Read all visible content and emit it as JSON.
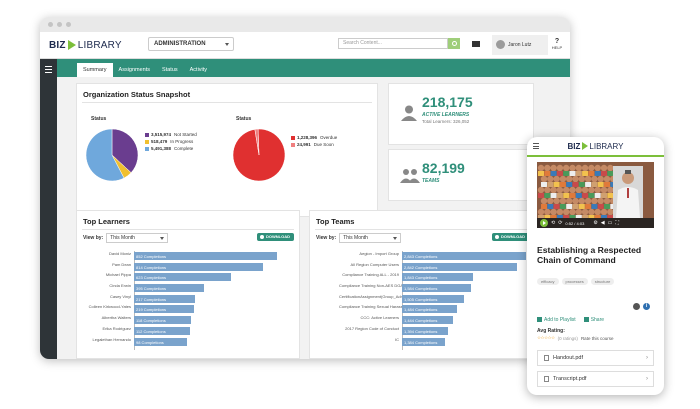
{
  "desktop": {
    "logo": {
      "biz": "BIZ",
      "library": "LIBRARY"
    },
    "admin_select": "ADMINISTRATION",
    "search_placeholder": "Search Content...",
    "user_name": "Jaron Lutz",
    "help_label": "HELP",
    "tabs": [
      "Summary",
      "Assignments",
      "Status",
      "Activity"
    ],
    "active_tab": "Summary",
    "org_status": {
      "title": "Organization Status Snapshot",
      "pie1": {
        "label": "Status",
        "items": [
          {
            "value": "3,515,974",
            "label": "Not Started",
            "color": "#6a3d8f"
          },
          {
            "value": "518,479",
            "label": "In Progress",
            "color": "#f0c030"
          },
          {
            "value": "5,491,388",
            "label": "Complete",
            "color": "#6fa8dc"
          }
        ]
      },
      "pie2": {
        "label": "Status",
        "items": [
          {
            "value": "1,228,396",
            "label": "Overdue",
            "color": "#e03030"
          },
          {
            "value": "24,991",
            "label": "Due Soon",
            "color": "#f08080"
          }
        ]
      }
    },
    "stats": {
      "learners_value": "218,175",
      "learners_label": "ACTIVE LEARNERS",
      "learners_sub": "Total Learners: 326,052",
      "teams_value": "82,199",
      "teams_label": "TEAMS"
    },
    "top_learners": {
      "title": "Top Learners",
      "view_by_label": "View by:",
      "view_by_value": "This Month",
      "download_label": "DOWNLOAD",
      "rows": [
        {
          "name": "David Moniz",
          "value": "852 Completions",
          "frac": 1.0
        },
        {
          "name": "Pam Dean",
          "value": "814 Completions",
          "frac": 0.9
        },
        {
          "name": "Michael Pippa",
          "value": "623 Completions",
          "frac": 0.68
        },
        {
          "name": "Cinda Erwin",
          "value": "395 Completions",
          "frac": 0.49
        },
        {
          "name": "Casey Vinyl",
          "value": "217 Completions",
          "frac": 0.43
        },
        {
          "name": "Colleen Kirkwood-Yates",
          "value": "219 Completions",
          "frac": 0.42
        },
        {
          "name": "Albertha Walters",
          "value": "118 Completions",
          "frac": 0.4
        },
        {
          "name": "Erika Rodriguez",
          "value": "112 Completions",
          "frac": 0.39
        },
        {
          "name": "Legalethan Hernando",
          "value": "98 Completions",
          "frac": 0.37
        }
      ]
    },
    "top_teams": {
      "title": "Top Teams",
      "view_by_label": "View by:",
      "view_by_value": "This Month",
      "download_label": "DOWNLOAD",
      "rows": [
        {
          "name": "Aegion - Import Group",
          "value": "2,843 Completions",
          "frac": 1.0
        },
        {
          "name": "All Region Computer Users",
          "value": "2,842 Completions",
          "frac": 0.93
        },
        {
          "name": "Compliance Training ALL - 2019",
          "value": "1,843 Completions",
          "frac": 0.57
        },
        {
          "name": "Compliance Training Non-AES DGA - 2019",
          "value": "1,584 Completions",
          "frac": 0.56
        },
        {
          "name": "CertificationAssignment(Group_AdminPro)",
          "value": "1,505 Completions",
          "frac": 0.5
        },
        {
          "name": "Compliance Training Sexual Harassment U.S. & Canada",
          "value": "1,484 Completions",
          "frac": 0.44
        },
        {
          "name": "CCC: Active Learners",
          "value": "1,444 Completions",
          "frac": 0.41
        },
        {
          "name": "2017 Region Code of Conduct",
          "value": "1,394 Completions",
          "frac": 0.37
        },
        {
          "name": "IC",
          "value": "1,384 Completions",
          "frac": 0.35
        }
      ]
    }
  },
  "mobile": {
    "logo": {
      "biz": "BIZ",
      "library": "LIBRARY"
    },
    "video_time": "0:52 / 4:03",
    "course_title": "Establishing a Respected Chain of Command",
    "tags": [
      "efficacy",
      "processes",
      "structure"
    ],
    "add_to_playlist": "Add to Playlist",
    "share": "Share",
    "avg_rating_label": "Avg Rating:",
    "ratings_count": "(0 ratings)",
    "rate_course": "Rate this course",
    "files": [
      "Handout.pdf",
      "Transcript.pdf"
    ]
  }
}
